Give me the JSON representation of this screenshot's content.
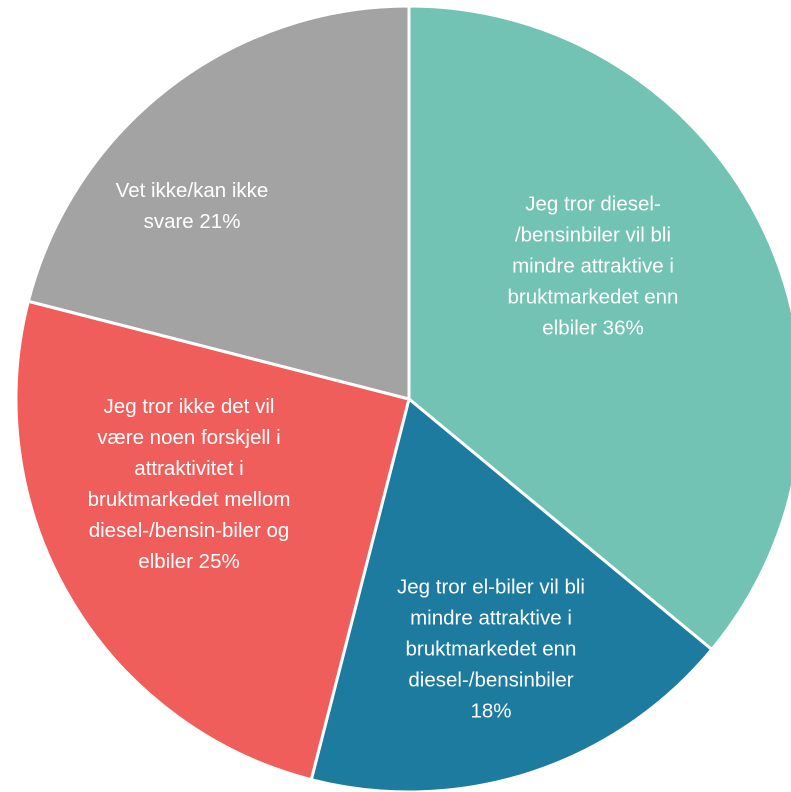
{
  "chart_data": {
    "type": "pie",
    "title": "",
    "legend": "none",
    "start_angle_deg": 0,
    "direction": "clockwise",
    "slices": [
      {
        "id": "diesel-less-attractive",
        "value": 36,
        "color": "#72C3B4",
        "label_lines": [
          "Jeg tror diesel-",
          "/bensinbiler vil bli",
          "mindre attraktive i",
          "bruktmarkedet enn",
          "elbiler 36%"
        ]
      },
      {
        "id": "ev-less-attractive",
        "value": 18,
        "color": "#1E7BA0",
        "label_lines": [
          "Jeg tror el-biler vil bli",
          "mindre attraktive i",
          "bruktmarkedet enn",
          "diesel-/bensinbiler",
          "18%"
        ]
      },
      {
        "id": "no-difference",
        "value": 25,
        "color": "#EF5E5B",
        "label_lines": [
          "Jeg tror ikke det vil",
          "være noen forskjell i",
          "attraktivitet i",
          "bruktmarkedet mellom",
          "diesel-/bensin-biler og",
          "elbiler 25%"
        ]
      },
      {
        "id": "dont-know",
        "value": 21,
        "color": "#A3A3A3",
        "label_lines": [
          "Vet ikke/kan ikke",
          "svare 21%"
        ]
      }
    ]
  }
}
